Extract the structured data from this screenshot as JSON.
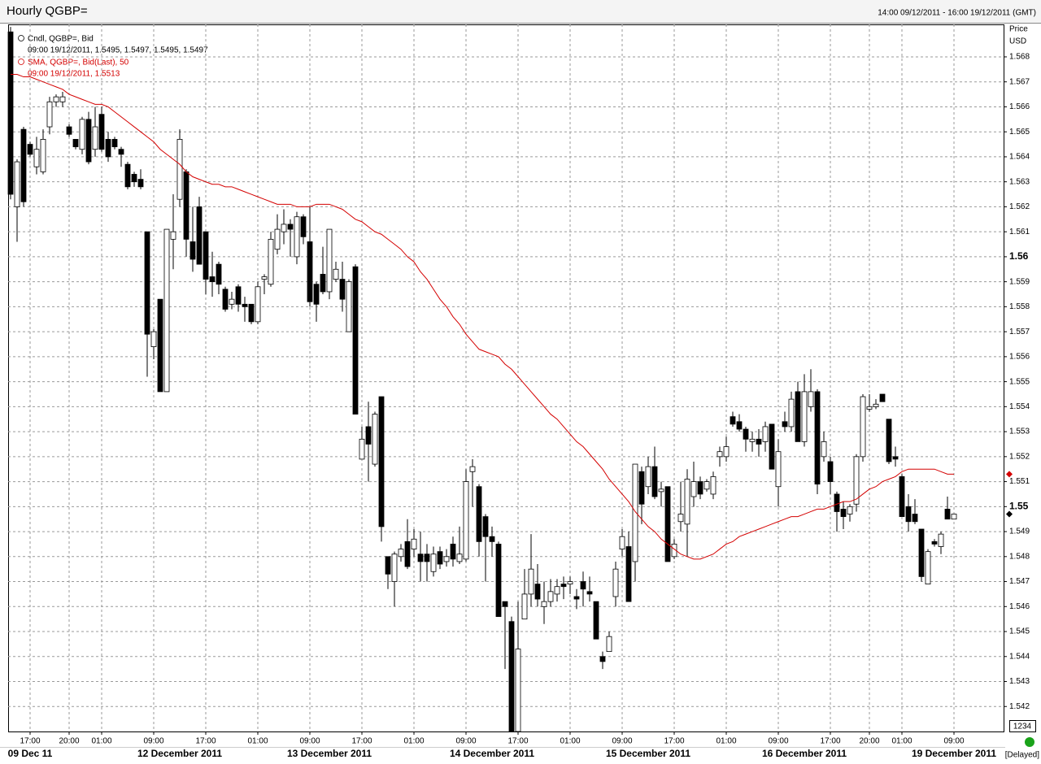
{
  "chart_data": {
    "type": "candlestick",
    "title": "Hourly QGBP=",
    "subtitle": "14:00 09/12/2011 - 16:00 19/12/2011 (GMT)",
    "y_label": "Price",
    "y_unit": "USD",
    "zoom_label": "1234",
    "status": "[Delayed]",
    "grid": true,
    "ylim": [
      1.541,
      1.5693
    ],
    "yticks": [
      1.542,
      1.543,
      1.544,
      1.545,
      1.546,
      1.547,
      1.548,
      1.549,
      1.55,
      1.551,
      1.552,
      1.553,
      1.554,
      1.555,
      1.556,
      1.557,
      1.558,
      1.559,
      1.56,
      1.561,
      1.562,
      1.563,
      1.564,
      1.565,
      1.566,
      1.567,
      1.568
    ],
    "xticks": [
      {
        "value": 3,
        "label": "17:00"
      },
      {
        "value": 9,
        "label": "20:00"
      },
      {
        "value": 14,
        "label": "01:00"
      },
      {
        "value": 22,
        "label": "09:00"
      },
      {
        "value": 30,
        "label": "17:00"
      },
      {
        "value": 38,
        "label": "01:00"
      },
      {
        "value": 46,
        "label": "09:00"
      },
      {
        "value": 54,
        "label": "17:00"
      },
      {
        "value": 62,
        "label": "01:00"
      },
      {
        "value": 70,
        "label": "09:00"
      },
      {
        "value": 78,
        "label": "17:00"
      },
      {
        "value": 86,
        "label": "01:00"
      },
      {
        "value": 94,
        "label": "09:00"
      },
      {
        "value": 102,
        "label": "17:00"
      },
      {
        "value": 110,
        "label": "01:00"
      },
      {
        "value": 118,
        "label": "09:00"
      },
      {
        "value": 126,
        "label": "17:00"
      },
      {
        "value": 132,
        "label": "20:00"
      },
      {
        "value": 137,
        "label": "01:00"
      },
      {
        "value": 145,
        "label": "09:00"
      }
    ],
    "date_ticks": [
      {
        "value": 3,
        "label": "09 Dec 11"
      },
      {
        "value": 26,
        "label": "12 December 2011"
      },
      {
        "value": 49,
        "label": "13 December 2011"
      },
      {
        "value": 74,
        "label": "14 December 2011"
      },
      {
        "value": 98,
        "label": "15 December 2011"
      },
      {
        "value": 122,
        "label": "16 December 2011"
      },
      {
        "value": 145,
        "label": "19 December 2011"
      }
    ],
    "candles": {
      "name": "Cndl, QGBP=, Bid",
      "readout": "09:00 19/12/2011, 1.5495, 1.5497, 1.5495, 1.5497",
      "up_color": "#ffffff",
      "down_color": "#000000",
      "open": [
        1.569,
        1.562,
        1.5651,
        1.5645,
        1.5636,
        1.5634,
        1.5652,
        1.5662,
        1.5662,
        1.5652,
        1.5647,
        1.5643,
        1.5655,
        1.5643,
        1.5657,
        1.5647,
        1.5647,
        1.5643,
        1.5637,
        1.5633,
        1.5631,
        1.561,
        1.5564,
        1.5583,
        1.5546,
        1.5607,
        1.5623,
        1.5634,
        1.5606,
        1.562,
        1.561,
        1.5592,
        1.5597,
        1.5587,
        1.5581,
        1.5588,
        1.5581,
        1.5581,
        1.5574,
        1.5591,
        1.5589,
        1.5603,
        1.561,
        1.5613,
        1.56,
        1.5616,
        1.5606,
        1.5589,
        1.5593,
        1.5586,
        1.5591,
        1.5591,
        1.557,
        1.5596,
        1.5519,
        1.5532,
        1.5517,
        1.5544,
        1.548,
        1.547,
        1.548,
        1.5486,
        1.5483,
        1.5481,
        1.5481,
        1.5474,
        1.5482,
        1.5478,
        1.5485,
        1.5478,
        1.5479,
        1.5514,
        1.5508,
        1.5496,
        1.5488,
        1.5485,
        1.5462,
        1.5454,
        1.541,
        1.5455,
        1.5465,
        1.5469,
        1.546,
        1.5462,
        1.5465,
        1.5469,
        1.5469,
        1.5464,
        1.547,
        1.5466,
        1.5462,
        1.544,
        1.5442,
        1.5464,
        1.5483,
        1.5484,
        1.5478,
        1.5514,
        1.5508,
        1.5516,
        1.5506,
        1.5508,
        1.548,
        1.5494,
        1.5493,
        1.5504,
        1.551,
        1.5507,
        1.5505,
        1.552,
        1.552,
        1.5536,
        1.5534,
        1.5531,
        1.5526,
        1.5527,
        1.5526,
        1.5533,
        1.5508,
        1.5534,
        1.5532,
        1.5546,
        1.5526,
        1.554,
        1.5546,
        1.552,
        1.5518,
        1.5505,
        1.5499,
        1.5497,
        1.5501,
        1.552,
        1.5539,
        1.554,
        1.5545,
        1.5535,
        1.552,
        1.5512,
        1.55,
        1.5497,
        1.5491,
        1.5469,
        1.5486,
        1.5484,
        1.5499,
        1.5495
      ],
      "high": [
        1.5692,
        1.5639,
        1.5652,
        1.5646,
        1.5648,
        1.5651,
        1.5664,
        1.5665,
        1.5666,
        1.5653,
        1.5647,
        1.5656,
        1.5658,
        1.566,
        1.566,
        1.565,
        1.5648,
        1.5644,
        1.5638,
        1.5634,
        1.5635,
        1.561,
        1.5571,
        1.5583,
        1.5611,
        1.5625,
        1.5651,
        1.5635,
        1.562,
        1.5624,
        1.561,
        1.5602,
        1.5598,
        1.5588,
        1.5586,
        1.5589,
        1.5584,
        1.5581,
        1.559,
        1.5593,
        1.561,
        1.5617,
        1.5619,
        1.5615,
        1.5618,
        1.5617,
        1.562,
        1.559,
        1.5604,
        1.5611,
        1.5598,
        1.5598,
        1.5591,
        1.5597,
        1.5532,
        1.5542,
        1.5538,
        1.5544,
        1.548,
        1.5482,
        1.5485,
        1.5495,
        1.5491,
        1.549,
        1.5485,
        1.5484,
        1.5484,
        1.5483,
        1.5488,
        1.5492,
        1.5515,
        1.5519,
        1.5509,
        1.5497,
        1.5492,
        1.5486,
        1.5462,
        1.5456,
        1.5462,
        1.5475,
        1.5489,
        1.5477,
        1.547,
        1.5471,
        1.5471,
        1.5472,
        1.5472,
        1.5467,
        1.5474,
        1.5472,
        1.5462,
        1.5442,
        1.545,
        1.5478,
        1.5491,
        1.549,
        1.5517,
        1.5516,
        1.552,
        1.5524,
        1.551,
        1.5508,
        1.5487,
        1.551,
        1.5515,
        1.5518,
        1.5512,
        1.5511,
        1.5514,
        1.5524,
        1.5528,
        1.5538,
        1.5537,
        1.5532,
        1.553,
        1.5531,
        1.5534,
        1.5533,
        1.5527,
        1.5538,
        1.5546,
        1.555,
        1.5553,
        1.5555,
        1.5547,
        1.553,
        1.552,
        1.5506,
        1.5502,
        1.5501,
        1.5521,
        1.5545,
        1.5545,
        1.5543,
        1.5545,
        1.5535,
        1.5524,
        1.5513,
        1.5505,
        1.5503,
        1.5491,
        1.5483,
        1.5487,
        1.549,
        1.5504,
        1.5497
      ],
      "low": [
        1.5623,
        1.5606,
        1.562,
        1.564,
        1.5633,
        1.5633,
        1.5649,
        1.566,
        1.566,
        1.5648,
        1.5643,
        1.5641,
        1.5637,
        1.564,
        1.5642,
        1.5638,
        1.5643,
        1.5636,
        1.5627,
        1.5628,
        1.5627,
        1.5552,
        1.5559,
        1.5546,
        1.5546,
        1.5595,
        1.562,
        1.56,
        1.5594,
        1.5597,
        1.5585,
        1.5584,
        1.5585,
        1.5578,
        1.5579,
        1.5578,
        1.5574,
        1.5573,
        1.5573,
        1.5585,
        1.5588,
        1.5601,
        1.5605,
        1.56,
        1.5597,
        1.5605,
        1.558,
        1.5574,
        1.5585,
        1.5583,
        1.559,
        1.5578,
        1.557,
        1.5537,
        1.5519,
        1.551,
        1.5516,
        1.5486,
        1.5467,
        1.546,
        1.5478,
        1.5475,
        1.548,
        1.547,
        1.547,
        1.5472,
        1.5475,
        1.5476,
        1.5476,
        1.5477,
        1.5478,
        1.55,
        1.548,
        1.547,
        1.548,
        1.5456,
        1.5435,
        1.541,
        1.541,
        1.5455,
        1.546,
        1.546,
        1.5453,
        1.546,
        1.5462,
        1.5463,
        1.5465,
        1.5459,
        1.546,
        1.5462,
        1.5447,
        1.5435,
        1.5442,
        1.546,
        1.548,
        1.5462,
        1.547,
        1.5493,
        1.5505,
        1.5503,
        1.55,
        1.5478,
        1.5479,
        1.549,
        1.548,
        1.55,
        1.5503,
        1.5506,
        1.5503,
        1.5516,
        1.5518,
        1.5532,
        1.553,
        1.5522,
        1.5522,
        1.552,
        1.5522,
        1.5515,
        1.55,
        1.553,
        1.553,
        1.5526,
        1.5524,
        1.5538,
        1.5505,
        1.5518,
        1.5505,
        1.549,
        1.5491,
        1.5494,
        1.5498,
        1.5518,
        1.5538,
        1.5539,
        1.5542,
        1.5517,
        1.5516,
        1.5496,
        1.549,
        1.5493,
        1.547,
        1.5469,
        1.5484,
        1.5481,
        1.5495,
        1.5495
      ],
      "close": [
        1.5625,
        1.5638,
        1.5622,
        1.5641,
        1.5643,
        1.5647,
        1.5662,
        1.5664,
        1.5664,
        1.5649,
        1.5644,
        1.5655,
        1.5638,
        1.5652,
        1.5643,
        1.564,
        1.5644,
        1.5641,
        1.5628,
        1.563,
        1.5628,
        1.5569,
        1.557,
        1.5546,
        1.5611,
        1.561,
        1.5647,
        1.5607,
        1.5599,
        1.5597,
        1.5591,
        1.559,
        1.5589,
        1.5579,
        1.5583,
        1.5581,
        1.558,
        1.5574,
        1.5588,
        1.5592,
        1.5607,
        1.5611,
        1.5613,
        1.5611,
        1.5616,
        1.5608,
        1.5582,
        1.5581,
        1.5586,
        1.5611,
        1.5595,
        1.5583,
        1.559,
        1.5537,
        1.5527,
        1.5525,
        1.5537,
        1.5492,
        1.5473,
        1.5481,
        1.5483,
        1.5476,
        1.5487,
        1.5478,
        1.5478,
        1.5481,
        1.5477,
        1.548,
        1.5479,
        1.5481,
        1.551,
        1.5516,
        1.5486,
        1.5488,
        1.5486,
        1.5456,
        1.546,
        1.541,
        1.5443,
        1.5465,
        1.5475,
        1.5463,
        1.5462,
        1.5466,
        1.5468,
        1.5468,
        1.547,
        1.5463,
        1.5467,
        1.5465,
        1.5447,
        1.5438,
        1.5448,
        1.5475,
        1.5488,
        1.5462,
        1.5517,
        1.5501,
        1.5516,
        1.5504,
        1.5507,
        1.5478,
        1.5485,
        1.5497,
        1.5511,
        1.551,
        1.5505,
        1.551,
        1.5512,
        1.5522,
        1.5524,
        1.5533,
        1.5531,
        1.5527,
        1.5527,
        1.5525,
        1.5532,
        1.5515,
        1.5522,
        1.5532,
        1.5543,
        1.5526,
        1.5546,
        1.5546,
        1.5509,
        1.5526,
        1.551,
        1.5498,
        1.5496,
        1.55,
        1.552,
        1.5544,
        1.554,
        1.5541,
        1.5542,
        1.5518,
        1.5519,
        1.5496,
        1.5494,
        1.5494,
        1.5472,
        1.5482,
        1.5485,
        1.5489,
        1.5495,
        1.5497
      ]
    },
    "sma": {
      "name": "SMA, QGBP=, Bid(Last),  50",
      "readout": "09:00 19/12/2011, 1.5513",
      "color": "#d40000",
      "values": [
        1.5673,
        1.5673,
        1.5672,
        1.5672,
        1.5671,
        1.567,
        1.5669,
        1.5668,
        1.5667,
        1.5665,
        1.5664,
        1.5663,
        1.5662,
        1.5661,
        1.5661,
        1.566,
        1.5658,
        1.5656,
        1.5654,
        1.5652,
        1.565,
        1.5648,
        1.5646,
        1.5643,
        1.5641,
        1.5639,
        1.5637,
        1.5634,
        1.5632,
        1.5631,
        1.563,
        1.5629,
        1.5629,
        1.5628,
        1.5628,
        1.5627,
        1.5626,
        1.5625,
        1.5624,
        1.5623,
        1.5622,
        1.5621,
        1.5621,
        1.5621,
        1.562,
        1.562,
        1.562,
        1.5621,
        1.5621,
        1.5621,
        1.562,
        1.5619,
        1.5617,
        1.5615,
        1.5614,
        1.5612,
        1.561,
        1.5609,
        1.5607,
        1.5605,
        1.5603,
        1.56,
        1.5598,
        1.5594,
        1.5591,
        1.5587,
        1.5583,
        1.558,
        1.5576,
        1.5573,
        1.5569,
        1.5566,
        1.5563,
        1.5562,
        1.5561,
        1.556,
        1.5557,
        1.5555,
        1.5552,
        1.5549,
        1.5546,
        1.5543,
        1.554,
        1.5537,
        1.5535,
        1.5532,
        1.5529,
        1.5526,
        1.5524,
        1.5521,
        1.5518,
        1.5515,
        1.5511,
        1.5508,
        1.5505,
        1.5502,
        1.5498,
        1.5495,
        1.5492,
        1.549,
        1.5487,
        1.5485,
        1.5483,
        1.5481,
        1.548,
        1.5479,
        1.5479,
        1.548,
        1.5481,
        1.5483,
        1.5485,
        1.5486,
        1.5488,
        1.5489,
        1.549,
        1.5491,
        1.5492,
        1.5493,
        1.5494,
        1.5495,
        1.5496,
        1.5496,
        1.5497,
        1.5498,
        1.5499,
        1.5499,
        1.55,
        1.5501,
        1.5502,
        1.5502,
        1.5503,
        1.5505,
        1.5507,
        1.5508,
        1.551,
        1.5511,
        1.5512,
        1.5514,
        1.5515,
        1.5515,
        1.5515,
        1.5515,
        1.5515,
        1.5514,
        1.5513,
        1.5513
      ]
    }
  }
}
